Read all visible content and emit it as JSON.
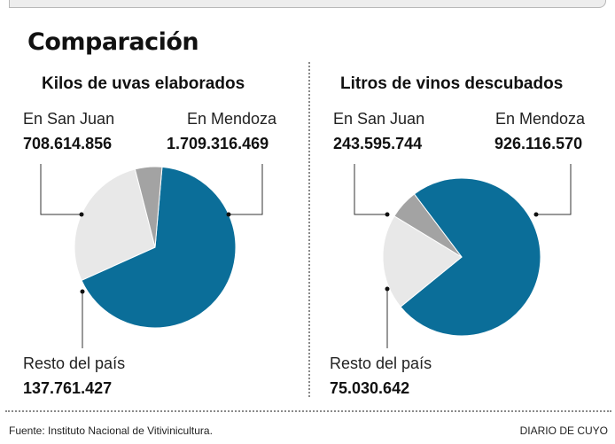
{
  "title": "Comparación",
  "colors": {
    "mendoza": "#0b6e99",
    "sanjuan": "#e8e8e8",
    "resto": "#a3a3a3",
    "leader": "#333333"
  },
  "panels": [
    {
      "title": "Kilos de uvas elaborados",
      "san_juan": {
        "label": "En San Juan",
        "value": "708.614.856"
      },
      "mendoza": {
        "label": "En Mendoza",
        "value": "1.709.316.469"
      },
      "resto": {
        "label": "Resto del país",
        "value": "137.761.427"
      }
    },
    {
      "title": "Litros de vinos descubados",
      "san_juan": {
        "label": "En San Juan",
        "value": "243.595.744"
      },
      "mendoza": {
        "label": "En Mendoza",
        "value": "926.116.570"
      },
      "resto": {
        "label": "Resto del país",
        "value": "75.030.642"
      }
    }
  ],
  "chart_data": [
    {
      "type": "pie",
      "title": "Kilos de uvas elaborados",
      "categories": [
        "En Mendoza",
        "En San Juan",
        "Resto del país"
      ],
      "values": [
        1709316469,
        708614856,
        137761427
      ]
    },
    {
      "type": "pie",
      "title": "Litros de vinos descubados",
      "categories": [
        "En Mendoza",
        "En San Juan",
        "Resto del país"
      ],
      "values": [
        926116570,
        243595744,
        75030642
      ]
    }
  ],
  "footer": {
    "source": "Fuente: Instituto Nacional de Vitivinicultura.",
    "brand": "DIARIO DE CUYO"
  }
}
